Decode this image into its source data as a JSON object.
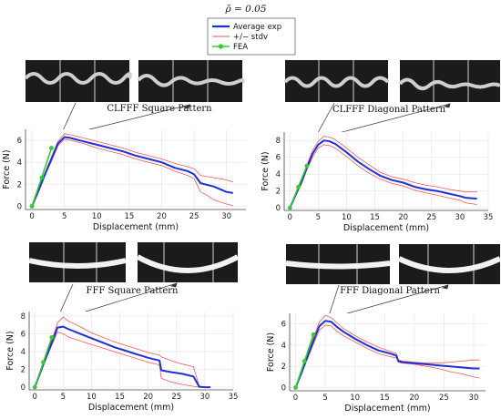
{
  "figure": {
    "title": "ρ̄ = 0.05",
    "legend": [
      "Average exp",
      "+/− stdv",
      "FEA"
    ]
  },
  "colors": {
    "average": "#1f2fd8",
    "stdv": "#ef5a5a",
    "fea": "#33cc33",
    "grid": "#e3e3e3",
    "axis": "#444444"
  },
  "chart_data": [
    {
      "type": "line",
      "title": "CLFFF Square Pattern",
      "xlabel": "Displacement (mm)",
      "ylabel": "Force (N)",
      "xlim": [
        -1,
        33
      ],
      "ylim": [
        -0.3,
        7
      ],
      "xticks": [
        0,
        5,
        10,
        15,
        20,
        25,
        30
      ],
      "yticks": [
        0,
        2,
        4,
        6
      ],
      "grid": true,
      "series": [
        {
          "name": "Average exp",
          "x": [
            0,
            1,
            2,
            3,
            4,
            5,
            6,
            8,
            10,
            12,
            14,
            16,
            18,
            20,
            22,
            24,
            25,
            26,
            28,
            30,
            31
          ],
          "y": [
            0,
            1.4,
            2.9,
            4.3,
            5.7,
            6.3,
            6.2,
            5.9,
            5.6,
            5.3,
            5.0,
            4.6,
            4.3,
            4.0,
            3.5,
            3.2,
            2.9,
            2.1,
            1.8,
            1.3,
            1.2
          ]
        },
        {
          "name": "+/− stdv",
          "x": [
            0,
            1,
            2,
            3,
            4,
            5,
            6,
            8,
            10,
            12,
            14,
            16,
            18,
            20,
            22,
            24,
            25,
            26,
            28,
            30,
            31
          ],
          "y": [
            0,
            1.5,
            3.0,
            4.5,
            5.9,
            6.6,
            6.5,
            6.2,
            5.9,
            5.6,
            5.3,
            4.9,
            4.6,
            4.3,
            3.9,
            3.6,
            3.4,
            2.8,
            2.6,
            2.4,
            2.2
          ]
        },
        {
          "name": "+/− stdv",
          "x": [
            0,
            1,
            2,
            3,
            4,
            5,
            6,
            8,
            10,
            12,
            14,
            16,
            18,
            20,
            22,
            24,
            25,
            26,
            27,
            28,
            29,
            30,
            31
          ],
          "y": [
            0,
            1.3,
            2.8,
            4.1,
            5.5,
            6.1,
            6.0,
            5.7,
            5.3,
            5.0,
            4.7,
            4.3,
            4.0,
            3.7,
            3.2,
            2.8,
            2.5,
            1.3,
            1.0,
            0.6,
            0.4,
            0.2,
            0.05
          ]
        },
        {
          "name": "FEA",
          "x": [
            0,
            1.5,
            3
          ],
          "y": [
            0,
            2.6,
            5.3
          ]
        }
      ]
    },
    {
      "type": "line",
      "title": "CLFFF Diagonal Pattern",
      "xlabel": "Displacement (mm)",
      "ylabel": "Force (N)",
      "xlim": [
        -1,
        35
      ],
      "ylim": [
        -0.3,
        9
      ],
      "xticks": [
        0,
        5,
        10,
        15,
        20,
        25,
        30,
        35
      ],
      "yticks": [
        0,
        2,
        4,
        6,
        8
      ],
      "grid": true,
      "series": [
        {
          "name": "Average exp",
          "x": [
            0,
            1,
            2,
            3,
            4,
            5,
            6,
            7,
            8,
            10,
            12,
            14,
            16,
            18,
            20,
            22,
            24,
            26,
            28,
            30,
            31,
            33
          ],
          "y": [
            0,
            1.5,
            3.0,
            4.8,
            6.4,
            7.5,
            8.0,
            7.9,
            7.6,
            6.6,
            5.5,
            4.6,
            3.8,
            3.3,
            3.0,
            2.5,
            2.2,
            2.0,
            1.7,
            1.4,
            1.2,
            1.1
          ]
        },
        {
          "name": "+/− stdv",
          "x": [
            0,
            1,
            2,
            3,
            4,
            5,
            6,
            7,
            8,
            10,
            12,
            14,
            16,
            18,
            20,
            22,
            24,
            26,
            28,
            30,
            31,
            33
          ],
          "y": [
            0,
            1.6,
            3.2,
            5.1,
            6.8,
            7.9,
            8.5,
            8.4,
            8.1,
            7.1,
            6.0,
            5.1,
            4.2,
            3.7,
            3.4,
            3.0,
            2.7,
            2.5,
            2.2,
            2.0,
            1.9,
            1.9
          ]
        },
        {
          "name": "+/− stdv",
          "x": [
            0,
            1,
            2,
            3,
            4,
            5,
            6,
            7,
            8,
            10,
            12,
            14,
            16,
            18,
            20,
            22,
            24,
            26,
            28,
            30,
            31,
            33
          ],
          "y": [
            0,
            1.4,
            2.8,
            4.5,
            6.0,
            7.1,
            7.5,
            7.4,
            7.1,
            6.1,
            5.0,
            4.1,
            3.4,
            2.9,
            2.6,
            2.1,
            1.8,
            1.5,
            1.2,
            0.9,
            0.6,
            0.4
          ]
        },
        {
          "name": "FEA",
          "x": [
            0,
            1.5,
            3
          ],
          "y": [
            0,
            2.5,
            5.0
          ]
        }
      ]
    },
    {
      "type": "line",
      "title": "FFF Square Pattern",
      "xlabel": "Displacement (mm)",
      "ylabel": "Force (N)",
      "xlim": [
        -1,
        35
      ],
      "ylim": [
        -0.3,
        8.5
      ],
      "xticks": [
        0,
        5,
        10,
        15,
        20,
        25,
        30,
        35
      ],
      "yticks": [
        0,
        2,
        4,
        6,
        8
      ],
      "grid": true,
      "series": [
        {
          "name": "Average exp",
          "x": [
            0,
            1,
            2,
            3,
            4,
            5,
            6,
            8,
            10,
            12,
            14,
            16,
            18,
            20,
            22,
            22.3,
            24,
            26,
            28,
            29,
            30,
            31
          ],
          "y": [
            0,
            1.7,
            3.4,
            5.0,
            6.7,
            6.8,
            6.5,
            6.0,
            5.5,
            5.0,
            4.5,
            4.1,
            3.7,
            3.3,
            3.0,
            1.9,
            1.7,
            1.5,
            1.2,
            0.05,
            0,
            0
          ]
        },
        {
          "name": "+/− stdv",
          "x": [
            0,
            1,
            2,
            3,
            4,
            5,
            6,
            8,
            10,
            12,
            14,
            16,
            18,
            20,
            22,
            22.3,
            24,
            26,
            28,
            29,
            30,
            31
          ],
          "y": [
            0,
            1.8,
            3.6,
            5.3,
            7.2,
            7.9,
            7.4,
            6.8,
            6.1,
            5.6,
            5.1,
            4.7,
            4.3,
            3.9,
            3.6,
            3.4,
            3.0,
            2.6,
            2.3,
            0.1,
            0,
            0
          ]
        },
        {
          "name": "+/− stdv",
          "x": [
            0,
            1,
            2,
            3,
            4,
            5,
            6,
            8,
            10,
            12,
            14,
            16,
            18,
            20,
            22,
            22.3,
            24,
            26,
            28,
            29,
            30,
            31
          ],
          "y": [
            0,
            1.6,
            3.2,
            4.7,
            6.2,
            6.0,
            5.6,
            5.2,
            4.8,
            4.4,
            4.0,
            3.6,
            3.2,
            2.8,
            2.5,
            1.0,
            0.6,
            0.3,
            0.1,
            0,
            0,
            0
          ]
        },
        {
          "name": "FEA",
          "x": [
            0,
            1.5,
            3
          ],
          "y": [
            0,
            2.8,
            5.6
          ]
        }
      ]
    },
    {
      "type": "line",
      "title": "FFF Diagonal Pattern",
      "xlabel": "Displacement (mm)",
      "ylabel": "Force (N)",
      "xlim": [
        -1,
        32
      ],
      "ylim": [
        -0.3,
        7
      ],
      "xticks": [
        0,
        5,
        10,
        15,
        20,
        25,
        30
      ],
      "yticks": [
        0,
        2,
        4,
        6
      ],
      "grid": true,
      "series": [
        {
          "name": "Average exp",
          "x": [
            0,
            1,
            2,
            3,
            4,
            5,
            6,
            7,
            8,
            10,
            12,
            14,
            16,
            17,
            17.3,
            18,
            20,
            22,
            24,
            26,
            28,
            30,
            31
          ],
          "y": [
            0,
            1.4,
            2.9,
            4.4,
            5.8,
            6.3,
            6.2,
            5.7,
            5.3,
            4.6,
            4.0,
            3.5,
            3.2,
            3.0,
            2.5,
            2.4,
            2.3,
            2.2,
            2.1,
            2.0,
            1.9,
            1.8,
            1.8
          ]
        },
        {
          "name": "+/− stdv",
          "x": [
            0,
            1,
            2,
            3,
            4,
            5,
            6,
            7,
            8,
            10,
            12,
            14,
            16,
            17,
            17.3,
            18,
            20,
            22,
            24,
            26,
            28,
            30,
            31
          ],
          "y": [
            0,
            1.5,
            3.1,
            4.7,
            6.2,
            6.8,
            6.6,
            6.1,
            5.6,
            4.9,
            4.3,
            3.8,
            3.4,
            3.2,
            2.6,
            2.5,
            2.4,
            2.3,
            2.3,
            2.4,
            2.5,
            2.6,
            2.6
          ]
        },
        {
          "name": "+/− stdv",
          "x": [
            0,
            1,
            2,
            3,
            4,
            5,
            6,
            7,
            8,
            10,
            12,
            14,
            16,
            17,
            17.3,
            18,
            20,
            22,
            24,
            26,
            28,
            30,
            31
          ],
          "y": [
            0,
            1.3,
            2.7,
            4.1,
            5.4,
            5.9,
            5.8,
            5.3,
            4.9,
            4.3,
            3.7,
            3.2,
            2.9,
            2.8,
            2.4,
            2.3,
            2.2,
            2.0,
            1.8,
            1.5,
            1.3,
            1.0,
            0.9
          ]
        },
        {
          "name": "FEA",
          "x": [
            0,
            1.5,
            3
          ],
          "y": [
            0,
            2.5,
            5.0
          ]
        }
      ]
    }
  ]
}
